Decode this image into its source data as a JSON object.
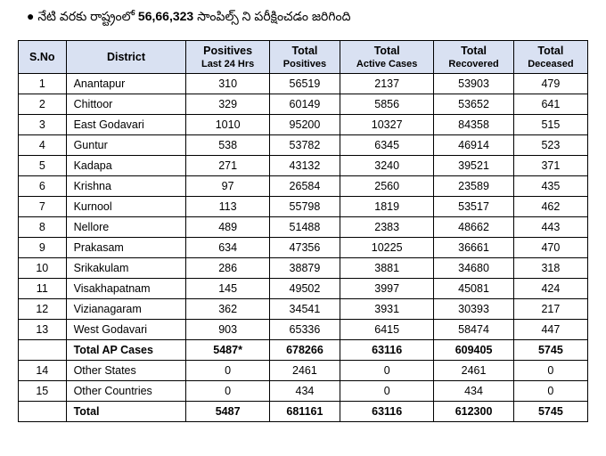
{
  "bullet_text_part1": "నేటి వరకు రాష్ట్రంలో ",
  "bullet_text_bold": "56,66,323",
  "bullet_text_part2": "  సాంపిల్స్ ని పరీక్షించడం జరిగింది",
  "headers": {
    "sno": "S.No",
    "district": "District",
    "positives_line1": "Positives",
    "positives_line2": "Last 24 Hrs",
    "total_positives_line1": "Total",
    "total_positives_line2": "Positives",
    "active_line1": "Total",
    "active_line2": "Active Cases",
    "recovered_line1": "Total",
    "recovered_line2": "Recovered",
    "deceased_line1": "Total",
    "deceased_line2": "Deceased"
  },
  "rows": [
    {
      "sno": "1",
      "district": "Anantapur",
      "p24": "310",
      "tp": "56519",
      "ac": "2137",
      "tr": "53903",
      "td": "479"
    },
    {
      "sno": "2",
      "district": "Chittoor",
      "p24": "329",
      "tp": "60149",
      "ac": "5856",
      "tr": "53652",
      "td": "641"
    },
    {
      "sno": "3",
      "district": "East Godavari",
      "p24": "1010",
      "tp": "95200",
      "ac": "10327",
      "tr": "84358",
      "td": "515"
    },
    {
      "sno": "4",
      "district": "Guntur",
      "p24": "538",
      "tp": "53782",
      "ac": "6345",
      "tr": "46914",
      "td": "523"
    },
    {
      "sno": "5",
      "district": "Kadapa",
      "p24": "271",
      "tp": "43132",
      "ac": "3240",
      "tr": "39521",
      "td": "371"
    },
    {
      "sno": "6",
      "district": "Krishna",
      "p24": "97",
      "tp": "26584",
      "ac": "2560",
      "tr": "23589",
      "td": "435"
    },
    {
      "sno": "7",
      "district": "Kurnool",
      "p24": "113",
      "tp": "55798",
      "ac": "1819",
      "tr": "53517",
      "td": "462"
    },
    {
      "sno": "8",
      "district": "Nellore",
      "p24": "489",
      "tp": "51488",
      "ac": "2383",
      "tr": "48662",
      "td": "443"
    },
    {
      "sno": "9",
      "district": "Prakasam",
      "p24": "634",
      "tp": "47356",
      "ac": "10225",
      "tr": "36661",
      "td": "470"
    },
    {
      "sno": "10",
      "district": "Srikakulam",
      "p24": "286",
      "tp": "38879",
      "ac": "3881",
      "tr": "34680",
      "td": "318"
    },
    {
      "sno": "11",
      "district": "Visakhapatnam",
      "p24": "145",
      "tp": "49502",
      "ac": "3997",
      "tr": "45081",
      "td": "424"
    },
    {
      "sno": "12",
      "district": "Vizianagaram",
      "p24": "362",
      "tp": "34541",
      "ac": "3931",
      "tr": "30393",
      "td": "217"
    },
    {
      "sno": "13",
      "district": "West Godavari",
      "p24": "903",
      "tp": "65336",
      "ac": "6415",
      "tr": "58474",
      "td": "447"
    }
  ],
  "ap_total": {
    "label": "Total AP Cases",
    "p24": "5487*",
    "tp": "678266",
    "ac": "63116",
    "tr": "609405",
    "td": "5745"
  },
  "other_rows": [
    {
      "sno": "14",
      "district": "Other States",
      "p24": "0",
      "tp": "2461",
      "ac": "0",
      "tr": "2461",
      "td": "0"
    },
    {
      "sno": "15",
      "district": "Other Countries",
      "p24": "0",
      "tp": "434",
      "ac": "0",
      "tr": "434",
      "td": "0"
    }
  ],
  "grand_total": {
    "label": "Total",
    "p24": "5487",
    "tp": "681161",
    "ac": "63116",
    "tr": "612300",
    "td": "5745"
  }
}
